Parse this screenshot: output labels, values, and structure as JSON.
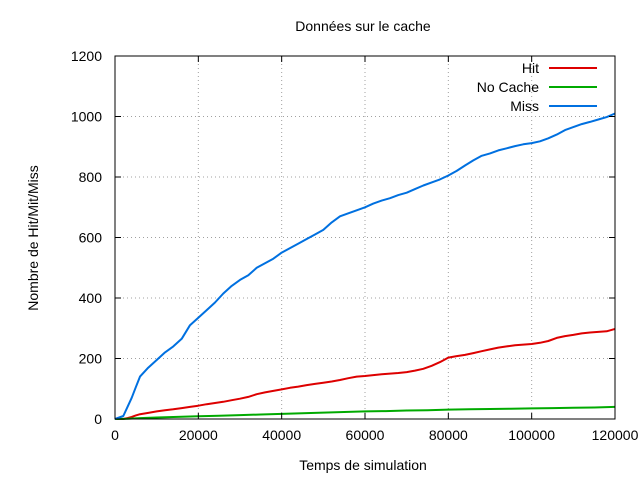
{
  "chart_data": {
    "type": "line",
    "title": "Données sur le cache",
    "xlabel": "Temps de simulation",
    "ylabel": "Nombre de Hit/Mit/Miss",
    "xlim": [
      0,
      120000
    ],
    "ylim": [
      0,
      1200
    ],
    "xticks": [
      0,
      20000,
      40000,
      60000,
      80000,
      100000,
      120000
    ],
    "yticks": [
      0,
      200,
      400,
      600,
      800,
      1000,
      1200
    ],
    "grid": true,
    "legend_position": "top-right",
    "series": [
      {
        "name": "Hit",
        "color": "#dd0000",
        "x": [
          0,
          2000,
          3000,
          4000,
          5000,
          6000,
          8000,
          10000,
          12000,
          14000,
          16000,
          18000,
          20000,
          22000,
          24000,
          26000,
          28000,
          30000,
          32000,
          34000,
          36000,
          38000,
          40000,
          42000,
          44000,
          46000,
          48000,
          50000,
          52000,
          54000,
          56000,
          58000,
          60000,
          62000,
          64000,
          66000,
          68000,
          70000,
          72000,
          74000,
          76000,
          78000,
          80000,
          82000,
          84000,
          86000,
          88000,
          90000,
          92000,
          94000,
          96000,
          98000,
          100000,
          102000,
          104000,
          106000,
          108000,
          110000,
          112000,
          114000,
          116000,
          118000,
          120000
        ],
        "y": [
          0,
          0,
          3,
          7,
          12,
          16,
          20,
          25,
          29,
          32,
          36,
          40,
          44,
          49,
          53,
          57,
          62,
          67,
          73,
          82,
          88,
          93,
          98,
          103,
          107,
          112,
          116,
          120,
          124,
          129,
          135,
          140,
          142,
          145,
          148,
          150,
          152,
          155,
          160,
          166,
          176,
          188,
          203,
          208,
          212,
          218,
          224,
          230,
          236,
          240,
          244,
          246,
          248,
          252,
          258,
          268,
          274,
          278,
          283,
          286,
          288,
          290,
          298
        ]
      },
      {
        "name": "No Cache",
        "color": "#00aa00",
        "x": [
          0,
          3000,
          6000,
          10000,
          15000,
          20000,
          25000,
          30000,
          35000,
          40000,
          45000,
          50000,
          55000,
          60000,
          65000,
          70000,
          75000,
          80000,
          85000,
          90000,
          95000,
          100000,
          105000,
          110000,
          115000,
          120000
        ],
        "y": [
          0,
          1,
          3,
          5,
          7,
          9,
          11,
          13,
          15,
          17,
          19,
          21,
          23,
          25,
          26,
          28,
          29,
          31,
          32,
          33,
          34,
          35,
          36,
          37,
          38,
          40
        ]
      },
      {
        "name": "Miss",
        "color": "#0070e0",
        "x": [
          0,
          2000,
          3000,
          4000,
          5000,
          6000,
          8000,
          10000,
          12000,
          14000,
          16000,
          18000,
          20000,
          22000,
          24000,
          26000,
          28000,
          30000,
          32000,
          34000,
          36000,
          38000,
          40000,
          42000,
          44000,
          46000,
          48000,
          50000,
          52000,
          54000,
          56000,
          58000,
          60000,
          62000,
          64000,
          66000,
          68000,
          70000,
          72000,
          74000,
          76000,
          78000,
          80000,
          82000,
          84000,
          86000,
          88000,
          90000,
          92000,
          94000,
          96000,
          98000,
          100000,
          102000,
          104000,
          106000,
          108000,
          110000,
          112000,
          114000,
          116000,
          118000,
          120000
        ],
        "y": [
          0,
          10,
          40,
          70,
          105,
          140,
          170,
          195,
          220,
          240,
          265,
          310,
          335,
          360,
          385,
          415,
          440,
          460,
          475,
          500,
          515,
          530,
          550,
          565,
          580,
          595,
          610,
          625,
          650,
          670,
          680,
          690,
          700,
          712,
          722,
          730,
          740,
          748,
          760,
          772,
          782,
          792,
          805,
          820,
          838,
          855,
          870,
          878,
          888,
          895,
          902,
          908,
          912,
          918,
          928,
          940,
          955,
          965,
          975,
          982,
          990,
          998,
          1010
        ]
      }
    ]
  }
}
